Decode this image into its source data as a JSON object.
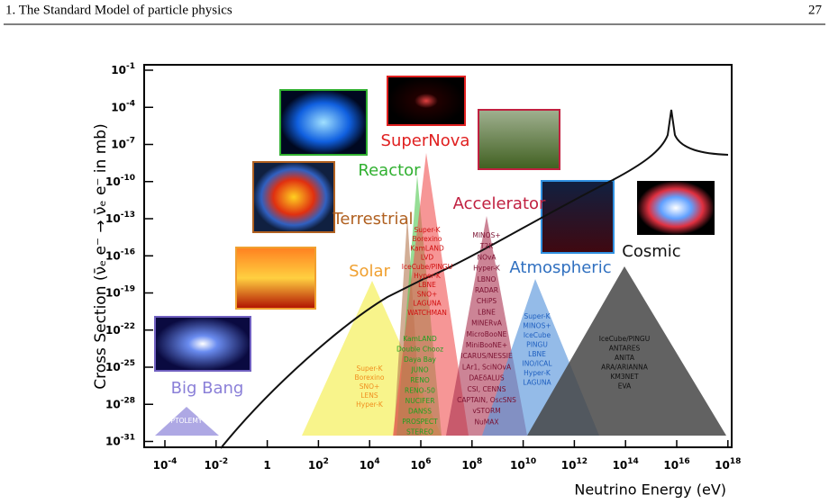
{
  "header": {
    "chapter": "1. The Standard Model of particle physics",
    "page": "27"
  },
  "figure": {
    "y_label": "Cross Section (ν̄ₑ e⁻ → ν̄ₑ e⁻ in mb)",
    "x_label": "Neutrino Energy (eV)",
    "xticks": [
      {
        "value": -4,
        "label": "10",
        "sup": "-4"
      },
      {
        "value": -2,
        "label": "10",
        "sup": "-2"
      },
      {
        "value": 0,
        "label": "1"
      },
      {
        "value": 2,
        "label": "10",
        "sup": "2"
      },
      {
        "value": 4,
        "label": "10",
        "sup": "4"
      },
      {
        "value": 6,
        "label": "10",
        "sup": "6"
      },
      {
        "value": 8,
        "label": "10",
        "sup": "8"
      },
      {
        "value": 10,
        "label": "10",
        "sup": "10"
      },
      {
        "value": 12,
        "label": "10",
        "sup": "12"
      },
      {
        "value": 14,
        "label": "10",
        "sup": "14"
      },
      {
        "value": 16,
        "label": "10",
        "sup": "16"
      },
      {
        "value": 18,
        "label": "10",
        "sup": "18"
      }
    ],
    "yticks": [
      {
        "value": -1,
        "label": "10",
        "sup": "-1"
      },
      {
        "value": -4,
        "label": "10",
        "sup": "-4"
      },
      {
        "value": -7,
        "label": "10",
        "sup": "-7"
      },
      {
        "value": -10,
        "label": "10",
        "sup": "-10"
      },
      {
        "value": -13,
        "label": "10",
        "sup": "-13"
      },
      {
        "value": -16,
        "label": "10",
        "sup": "-16"
      },
      {
        "value": -19,
        "label": "10",
        "sup": "-19"
      },
      {
        "value": -22,
        "label": "10",
        "sup": "-22"
      },
      {
        "value": -25,
        "label": "10",
        "sup": "-25"
      },
      {
        "value": -28,
        "label": "10",
        "sup": "-28"
      },
      {
        "value": -31,
        "label": "10",
        "sup": "-31"
      }
    ],
    "sources": [
      {
        "name": "Big Bang",
        "color": "#8a7fd8",
        "experiments": [
          "PTOLEMY"
        ]
      },
      {
        "name": "Solar",
        "color": "#f0a030",
        "experiments": [
          "Super-K",
          "Borexino",
          "SNO+",
          "LENS",
          "Hyper-K"
        ]
      },
      {
        "name": "Terrestrial",
        "color": "#b06020",
        "experiments": []
      },
      {
        "name": "Reactor",
        "color": "#30b030",
        "experiments": [
          "KamLAND",
          "Double Chooz",
          "Daya Bay",
          "JUNO",
          "RENO",
          "RENO-50",
          "NUCIFER",
          "DANSS",
          "PROSPECT",
          "STEREO"
        ]
      },
      {
        "name": "SuperNova",
        "color": "#e02020",
        "experiments": [
          "Super-K",
          "Borexino",
          "KamLAND",
          "LVD",
          "IceCube/PINGU",
          "Hyper-K",
          "LBNE",
          "SNO+",
          "LAGUNA",
          "WATCHMAN"
        ]
      },
      {
        "name": "Accelerator",
        "color": "#c02040",
        "experiments": [
          "MINOS+",
          "T2K",
          "NOvA",
          "Hyper-K",
          "LBNO",
          "RADAR",
          "CHiPS",
          "LBNE",
          "MINERvA",
          "MicroBooNE",
          "MiniBooNE+",
          "ICARUS/NESSIE",
          "LAr1, SciNOvA",
          "DAEδALUS",
          "CSI, CENNS",
          "CAPTAIN, OscSNS",
          "vSTORM",
          "NuMAX"
        ]
      },
      {
        "name": "Atmospheric",
        "color": "#3070c0",
        "experiments": [
          "Super-K",
          "MINOS+",
          "IceCube",
          "PINGU",
          "LBNE",
          "INO/ICAL",
          "Hyper-K",
          "LAGUNA"
        ]
      },
      {
        "name": "Cosmic",
        "color": "#111111",
        "experiments": [
          "IceCube/PINGU",
          "ANTARES",
          "ANITA",
          "ARA/ARIANNA",
          "KM3NET",
          "EVA"
        ]
      }
    ]
  }
}
